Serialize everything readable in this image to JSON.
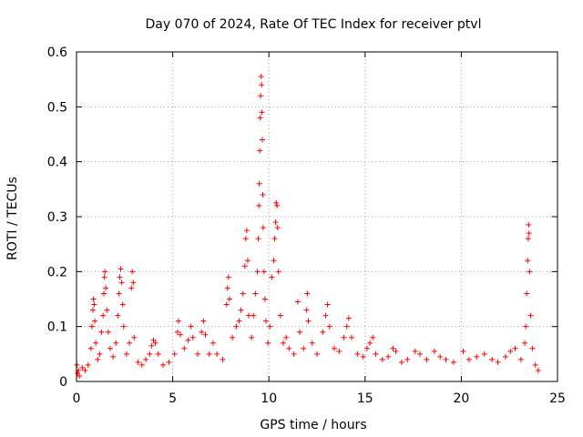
{
  "chart_data": {
    "type": "scatter",
    "title": "Day 070 of 2024, Rate Of TEC Index for receiver ptvl",
    "xlabel": "GPS time / hours",
    "ylabel": "ROTI / TECUs",
    "xlim": [
      0,
      25
    ],
    "ylim": [
      0,
      0.6
    ],
    "x_ticks": [
      "0",
      "5",
      "10",
      "15",
      "20",
      "25"
    ],
    "y_ticks": [
      "0",
      "0.1",
      "0.2",
      "0.3",
      "0.4",
      "0.5",
      "0.6"
    ],
    "x_tick_values": [
      0,
      5,
      10,
      15,
      20,
      25
    ],
    "y_tick_values": [
      0,
      0.1,
      0.2,
      0.3,
      0.4,
      0.5,
      0.6
    ],
    "grid": true,
    "marker": "+",
    "color": "#ff0000",
    "series": [
      {
        "name": "ROTI",
        "points": [
          [
            0.02,
            0.03
          ],
          [
            0.05,
            0.015
          ],
          [
            0.1,
            0.02
          ],
          [
            0.15,
            0.01
          ],
          [
            0.3,
            0.025
          ],
          [
            0.45,
            0.02
          ],
          [
            0.6,
            0.03
          ],
          [
            0.75,
            0.06
          ],
          [
            0.8,
            0.1
          ],
          [
            0.85,
            0.13
          ],
          [
            0.88,
            0.15
          ],
          [
            0.92,
            0.14
          ],
          [
            0.95,
            0.11
          ],
          [
            1.0,
            0.07
          ],
          [
            1.1,
            0.04
          ],
          [
            1.2,
            0.05
          ],
          [
            1.3,
            0.09
          ],
          [
            1.38,
            0.12
          ],
          [
            1.42,
            0.16
          ],
          [
            1.45,
            0.19
          ],
          [
            1.48,
            0.2
          ],
          [
            1.52,
            0.17
          ],
          [
            1.58,
            0.13
          ],
          [
            1.65,
            0.09
          ],
          [
            1.75,
            0.06
          ],
          [
            1.9,
            0.045
          ],
          [
            2.05,
            0.07
          ],
          [
            2.15,
            0.12
          ],
          [
            2.2,
            0.16
          ],
          [
            2.25,
            0.19
          ],
          [
            2.3,
            0.205
          ],
          [
            2.35,
            0.18
          ],
          [
            2.4,
            0.14
          ],
          [
            2.45,
            0.1
          ],
          [
            2.6,
            0.05
          ],
          [
            2.75,
            0.07
          ],
          [
            2.85,
            0.17
          ],
          [
            2.9,
            0.2
          ],
          [
            2.95,
            0.18
          ],
          [
            3.0,
            0.08
          ],
          [
            3.2,
            0.035
          ],
          [
            3.4,
            0.03
          ],
          [
            3.6,
            0.04
          ],
          [
            3.8,
            0.05
          ],
          [
            3.9,
            0.065
          ],
          [
            4.0,
            0.075
          ],
          [
            4.1,
            0.07
          ],
          [
            4.25,
            0.05
          ],
          [
            4.5,
            0.03
          ],
          [
            4.8,
            0.035
          ],
          [
            5.1,
            0.05
          ],
          [
            5.25,
            0.09
          ],
          [
            5.3,
            0.11
          ],
          [
            5.4,
            0.085
          ],
          [
            5.6,
            0.06
          ],
          [
            5.8,
            0.075
          ],
          [
            5.95,
            0.1
          ],
          [
            6.05,
            0.08
          ],
          [
            6.3,
            0.05
          ],
          [
            6.5,
            0.09
          ],
          [
            6.6,
            0.11
          ],
          [
            6.7,
            0.085
          ],
          [
            6.9,
            0.05
          ],
          [
            7.1,
            0.07
          ],
          [
            7.3,
            0.05
          ],
          [
            7.6,
            0.04
          ],
          [
            7.8,
            0.14
          ],
          [
            7.85,
            0.17
          ],
          [
            7.9,
            0.19
          ],
          [
            7.95,
            0.15
          ],
          [
            8.1,
            0.08
          ],
          [
            8.3,
            0.1
          ],
          [
            8.45,
            0.11
          ],
          [
            8.55,
            0.13
          ],
          [
            8.65,
            0.16
          ],
          [
            8.75,
            0.21
          ],
          [
            8.8,
            0.26
          ],
          [
            8.85,
            0.275
          ],
          [
            8.9,
            0.22
          ],
          [
            8.95,
            0.12
          ],
          [
            9.1,
            0.08
          ],
          [
            9.2,
            0.12
          ],
          [
            9.3,
            0.16
          ],
          [
            9.4,
            0.2
          ],
          [
            9.45,
            0.26
          ],
          [
            9.48,
            0.32
          ],
          [
            9.5,
            0.36
          ],
          [
            9.52,
            0.42
          ],
          [
            9.55,
            0.48
          ],
          [
            9.57,
            0.52
          ],
          [
            9.6,
            0.555
          ],
          [
            9.62,
            0.54
          ],
          [
            9.64,
            0.49
          ],
          [
            9.66,
            0.44
          ],
          [
            9.68,
            0.34
          ],
          [
            9.7,
            0.28
          ],
          [
            9.75,
            0.2
          ],
          [
            9.8,
            0.15
          ],
          [
            9.85,
            0.11
          ],
          [
            9.95,
            0.07
          ],
          [
            10.05,
            0.1
          ],
          [
            10.15,
            0.19
          ],
          [
            10.25,
            0.22
          ],
          [
            10.3,
            0.26
          ],
          [
            10.35,
            0.29
          ],
          [
            10.38,
            0.325
          ],
          [
            10.42,
            0.32
          ],
          [
            10.45,
            0.28
          ],
          [
            10.5,
            0.2
          ],
          [
            10.6,
            0.12
          ],
          [
            10.75,
            0.07
          ],
          [
            10.9,
            0.08
          ],
          [
            11.05,
            0.06
          ],
          [
            11.3,
            0.05
          ],
          [
            11.5,
            0.145
          ],
          [
            11.6,
            0.09
          ],
          [
            11.8,
            0.06
          ],
          [
            11.95,
            0.13
          ],
          [
            12.0,
            0.16
          ],
          [
            12.05,
            0.11
          ],
          [
            12.25,
            0.07
          ],
          [
            12.5,
            0.05
          ],
          [
            12.8,
            0.09
          ],
          [
            12.95,
            0.12
          ],
          [
            13.05,
            0.14
          ],
          [
            13.15,
            0.1
          ],
          [
            13.4,
            0.06
          ],
          [
            13.65,
            0.055
          ],
          [
            13.9,
            0.08
          ],
          [
            14.05,
            0.1
          ],
          [
            14.15,
            0.115
          ],
          [
            14.3,
            0.08
          ],
          [
            14.6,
            0.05
          ],
          [
            14.9,
            0.045
          ],
          [
            15.1,
            0.06
          ],
          [
            15.25,
            0.07
          ],
          [
            15.4,
            0.08
          ],
          [
            15.55,
            0.05
          ],
          [
            15.9,
            0.04
          ],
          [
            16.2,
            0.045
          ],
          [
            16.45,
            0.06
          ],
          [
            16.6,
            0.055
          ],
          [
            16.9,
            0.035
          ],
          [
            17.2,
            0.04
          ],
          [
            17.6,
            0.055
          ],
          [
            17.85,
            0.05
          ],
          [
            18.2,
            0.04
          ],
          [
            18.6,
            0.055
          ],
          [
            18.9,
            0.045
          ],
          [
            19.2,
            0.04
          ],
          [
            19.6,
            0.035
          ],
          [
            20.1,
            0.055
          ],
          [
            20.4,
            0.04
          ],
          [
            20.8,
            0.045
          ],
          [
            21.2,
            0.05
          ],
          [
            21.6,
            0.04
          ],
          [
            21.9,
            0.035
          ],
          [
            22.3,
            0.045
          ],
          [
            22.55,
            0.055
          ],
          [
            22.8,
            0.06
          ],
          [
            23.1,
            0.04
          ],
          [
            23.3,
            0.07
          ],
          [
            23.35,
            0.1
          ],
          [
            23.4,
            0.16
          ],
          [
            23.45,
            0.22
          ],
          [
            23.48,
            0.26
          ],
          [
            23.5,
            0.285
          ],
          [
            23.52,
            0.27
          ],
          [
            23.55,
            0.2
          ],
          [
            23.6,
            0.12
          ],
          [
            23.7,
            0.06
          ],
          [
            23.85,
            0.03
          ],
          [
            24.0,
            0.02
          ]
        ]
      }
    ]
  }
}
